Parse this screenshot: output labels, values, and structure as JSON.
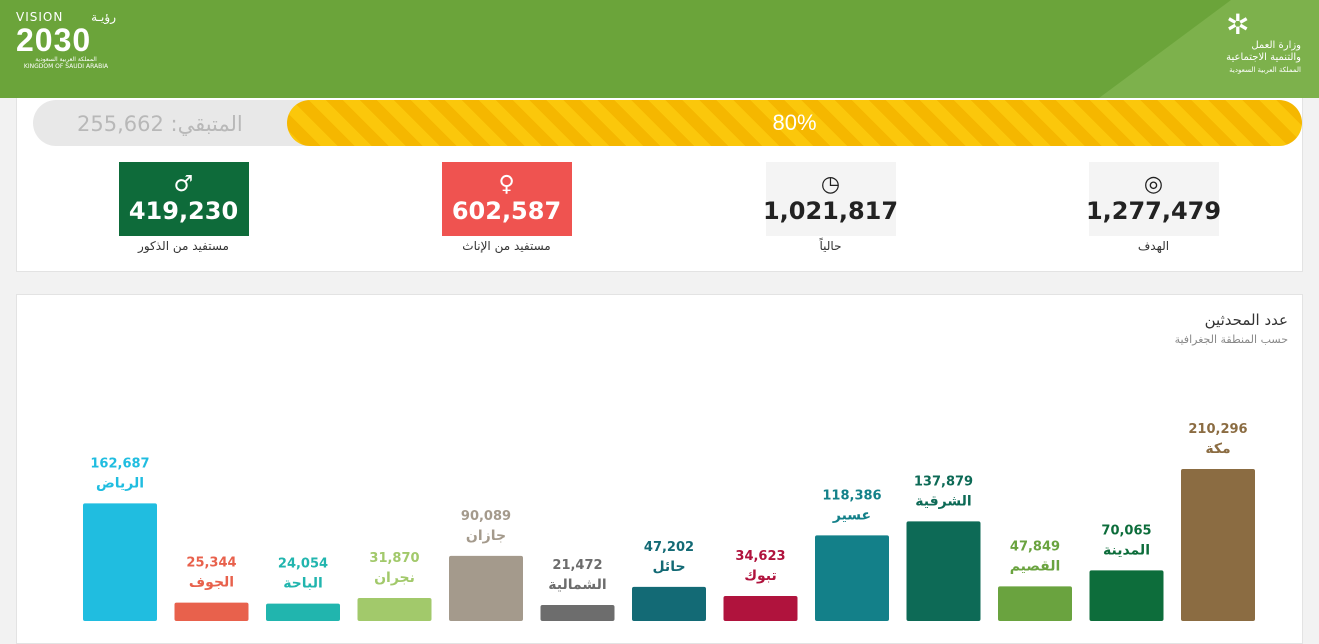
{
  "header": {
    "vision_top_left": "VISION",
    "vision_top_right": "رؤيـة",
    "vision_year": "2030",
    "vision_country_ar": "المملكة العربية السعودية",
    "vision_country_en": "KINGDOM OF SAUDI ARABIA",
    "ministry_line1": "وزارة العمل",
    "ministry_line2": "والتنمية الاجتماعية",
    "ministry_line3": "المملكة العربية السعودية"
  },
  "progress": {
    "percent_label": "80%",
    "percent": 80,
    "remaining_label": "المتبقي: 255,662"
  },
  "stats": [
    {
      "key": "target",
      "value": "1,277,479",
      "label": "الهدف",
      "icon": "target-icon"
    },
    {
      "key": "current",
      "value": "1,021,817",
      "label": "حالياً",
      "icon": "clock-icon"
    },
    {
      "key": "female",
      "value": "602,587",
      "label": "مستفيد من الإناث",
      "icon": "female-user-icon"
    },
    {
      "key": "male",
      "value": "419,230",
      "label": "مستفيد من الذكور",
      "icon": "male-user-icon"
    }
  ],
  "colors": {
    "header": "#6ba43a",
    "progress": "#fbc70b",
    "female": "#ef5350",
    "male": "#0e6b3a"
  },
  "chart": {
    "title": "عدد المحدثين",
    "subtitle": "حسب المنطقة الجغرافية"
  },
  "chart_data": {
    "type": "bar",
    "categories": [
      "الرياض",
      "الجوف",
      "الباحة",
      "نجران",
      "جازان",
      "الشمالية",
      "حائل",
      "تبوك",
      "عسير",
      "الشرقية",
      "القصيم",
      "المدينة",
      "مكة"
    ],
    "values": [
      162687,
      25344,
      24054,
      31870,
      90089,
      21472,
      47202,
      34623,
      118386,
      137879,
      47849,
      70065,
      210296
    ],
    "value_labels": [
      "162,687",
      "25,344",
      "24,054",
      "31,870",
      "90,089",
      "21,472",
      "47,202",
      "34,623",
      "118,386",
      "137,879",
      "47,849",
      "70,065",
      "210,296"
    ],
    "colors": [
      "#20bde0",
      "#e8614c",
      "#21b5ae",
      "#a2c96b",
      "#a49a8c",
      "#6d6d6d",
      "#136a75",
      "#b0133d",
      "#138089",
      "#0d6a56",
      "#6aa33f",
      "#0d6d3b",
      "#8b6c42"
    ],
    "title": "عدد المحدثين",
    "subtitle": "حسب المنطقة الجغرافية"
  }
}
